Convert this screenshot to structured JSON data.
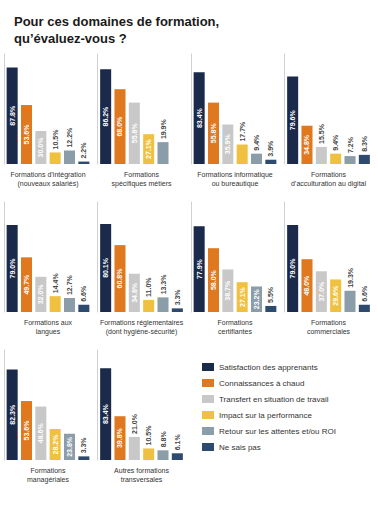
{
  "chart_data": {
    "type": "bar",
    "title": "Pour ces domaines de formation,\nqu’évaluez-vous ?",
    "categories": [
      "Formations d’intégration\n(nouveaux salariés)",
      "Formations\nspécifiques métiers",
      "Formations informatique\nou bureautique",
      "Formations\nd’acculturation au digital",
      "Formations aux\nlangues",
      "Formations réglementaires\n(dont hygiène-sécurité)",
      "Formations\ncertifiantes",
      "Formations\ncommerciales",
      "Formations\nmanagériales",
      "Autres formations\ntransversales"
    ],
    "series": [
      {
        "name": "Satisfaction des apprenants",
        "color": "#1b2a4a",
        "values": [
          87.8,
          86.2,
          83.4,
          79.6,
          79.0,
          80.1,
          77.9,
          79.0,
          82.3,
          83.4
        ],
        "value_labels": [
          "87.8%",
          "86.2%",
          "83.4%",
          "79.6%",
          "79.0%",
          "80.1%",
          "77.9%",
          "79.0%",
          "82.3%",
          "83.4%"
        ]
      },
      {
        "name": "Connaissances à chaud",
        "color": "#e07820",
        "values": [
          53.6,
          68.0,
          55.8,
          34.8,
          49.7,
          60.8,
          58.0,
          48.0,
          53.6,
          39.8
        ],
        "value_labels": [
          "53.6%",
          "68.0%",
          "55.8%",
          "34.8%",
          "49.7%",
          "60.8%",
          "58.0%",
          "48.0%",
          "53.6%",
          "39.8%"
        ]
      },
      {
        "name": "Transfert en situation de travail",
        "color": "#c8c8c8",
        "values": [
          30.0,
          55.8,
          35.9,
          15.5,
          32.0,
          34.8,
          38.7,
          37.0,
          48.6,
          21.0
        ],
        "value_labels": [
          "30.0%",
          "55.8%",
          "35.9%",
          "15.5%",
          "32.0%",
          "34.8%",
          "38.7%",
          "37.0%",
          "48.6%",
          "21.0%"
        ]
      },
      {
        "name": "Impact sur la performance",
        "color": "#f0c040",
        "values": [
          10.5,
          27.1,
          17.7,
          9.4,
          14.4,
          11.0,
          27.1,
          29.6,
          28.2,
          10.5
        ],
        "value_labels": [
          "10.5%",
          "27.1%",
          "17.7%",
          "9.4%",
          "14.4%",
          "11.0%",
          "27.1%",
          "29.6%",
          "28.2%",
          "10.5%"
        ]
      },
      {
        "name": "Retour sur les attentes et/ou ROI",
        "color": "#8c9daa",
        "values": [
          12.2,
          19.9,
          9.4,
          7.2,
          12.7,
          13.3,
          23.2,
          19.3,
          23.8,
          8.8
        ],
        "value_labels": [
          "12.2%",
          "19.9%",
          "9.4%",
          "7.2%",
          "12.7%",
          "13.3%",
          "23.2%",
          "19.3%",
          "23.8%",
          "8.8%"
        ]
      },
      {
        "name": "Ne sais pas",
        "color": "#2e4a6e",
        "values": [
          2.2,
          0.0,
          3.9,
          8.3,
          6.6,
          3.3,
          5.5,
          6.6,
          3.3,
          6.1
        ],
        "value_labels": [
          "2.2%",
          null,
          "3.9%",
          "8.3%",
          "6.6%",
          "3.3%",
          "5.5%",
          "6.6%",
          "3.3%",
          "6.1%"
        ]
      }
    ],
    "ylim": [
      0,
      100
    ],
    "grid": false,
    "legend": "bottom-right",
    "data_labels": true,
    "tick_labels": "x"
  }
}
